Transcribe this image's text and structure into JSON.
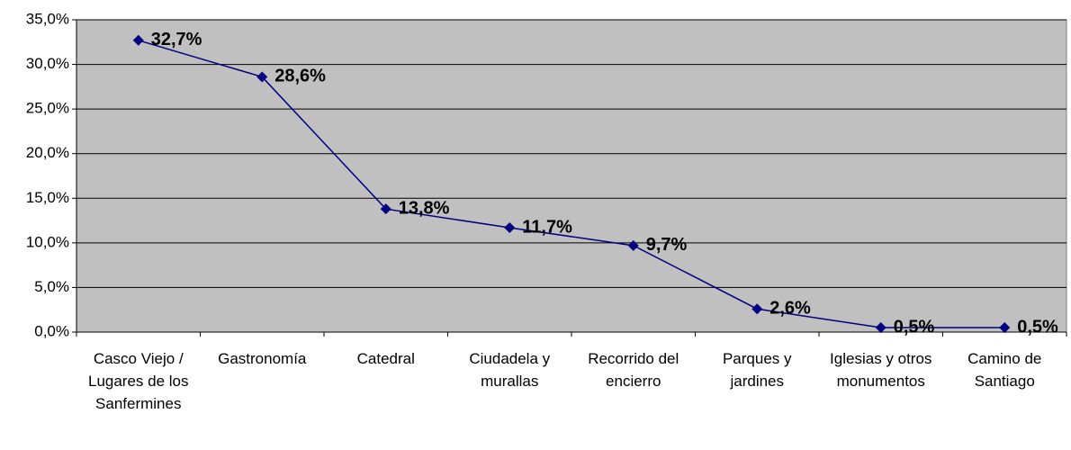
{
  "chart_data": {
    "type": "line",
    "categories": [
      "Casco Viejo / Lugares de los Sanfermines",
      "Gastronomía",
      "Catedral",
      "Ciudadela y murallas",
      "Recorrido del encierro",
      "Parques y jardines",
      "Iglesias y otros monumentos",
      "Camino de Santiago"
    ],
    "series": [
      {
        "color": "#000080",
        "values": [
          32.7,
          28.6,
          13.8,
          11.7,
          9.7,
          2.6,
          0.5,
          0.5
        ],
        "value_labels": [
          "32,7%",
          "28,6%",
          "13,8%",
          "11,7%",
          "9,7%",
          "2,6%",
          "0,5%",
          "0,5%"
        ]
      }
    ],
    "ylim": [
      0,
      35
    ],
    "yticks": [
      {
        "value": 0,
        "label": "0,0%"
      },
      {
        "value": 5,
        "label": "5,0%"
      },
      {
        "value": 10,
        "label": "10,0%"
      },
      {
        "value": 15,
        "label": "15,0%"
      },
      {
        "value": 20,
        "label": "20,0%"
      },
      {
        "value": 25,
        "label": "25,0%"
      },
      {
        "value": 30,
        "label": "30,0%"
      },
      {
        "value": 35,
        "label": "35,0%"
      }
    ],
    "grid": true,
    "plot_background": "#c0c0c0"
  }
}
